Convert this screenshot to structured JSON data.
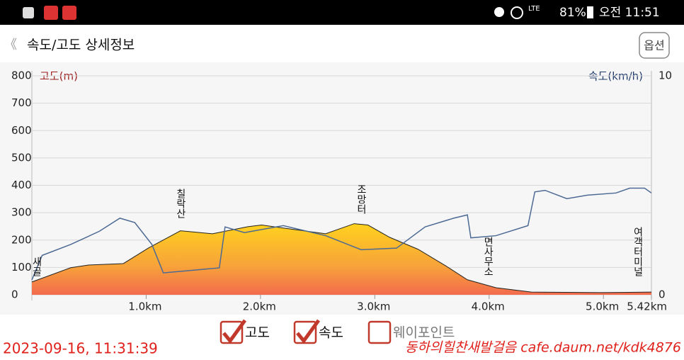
{
  "status_bar": {
    "network": "LTE",
    "battery": "81%",
    "time": "오전 11:51"
  },
  "header": {
    "back": "《",
    "title": "속도/고도 상세정보",
    "button": "옵션"
  },
  "chart_data": {
    "type": "area-line",
    "y_label": "고도(m)",
    "y2_label": "속도(km/h)",
    "xlim": [
      0,
      5.42
    ],
    "xticks": [
      {
        "value": 1,
        "label": "1.0km"
      },
      {
        "value": 2,
        "label": "2.0km"
      },
      {
        "value": 3,
        "label": "3.0km"
      },
      {
        "value": 4,
        "label": "4.0km"
      },
      {
        "value": 5,
        "label": "5.0km"
      },
      {
        "value": 5.42,
        "label": "5.42km"
      }
    ],
    "ylim": [
      0,
      800
    ],
    "yticks": [
      0,
      100,
      200,
      300,
      400,
      500,
      600,
      700,
      800
    ],
    "y2lim": [
      0,
      10
    ],
    "y2ticks": [
      0,
      10
    ],
    "grid": true,
    "series": [
      {
        "name": "고도",
        "type": "area",
        "color": "#f5a623",
        "x": [
          0,
          0.34,
          0.5,
          0.8,
          1.02,
          1.3,
          1.58,
          1.89,
          2.01,
          2.2,
          2.57,
          2.82,
          2.94,
          3.13,
          3.38,
          3.62,
          3.81,
          4.06,
          4.37,
          4.99,
          5.42
        ],
        "values": [
          47,
          99,
          109,
          114,
          171,
          234,
          223,
          249,
          255,
          244,
          223,
          260,
          255,
          210,
          166,
          106,
          55,
          26,
          10,
          8,
          10
        ]
      },
      {
        "name": "속도",
        "type": "line",
        "axis": "y2",
        "color": "#4d6a94",
        "x": [
          0,
          0.09,
          0.34,
          0.59,
          0.77,
          0.9,
          1.05,
          1.15,
          1.64,
          1.69,
          1.86,
          2.2,
          2.57,
          2.88,
          3.19,
          3.44,
          3.69,
          3.81,
          3.84,
          4.06,
          4.34,
          4.4,
          4.49,
          4.68,
          4.86,
          5.11,
          5.23,
          5.36,
          5.42
        ],
        "values": [
          0.68,
          1.8,
          2.3,
          2.9,
          3.5,
          3.3,
          2.3,
          1.0,
          1.23,
          3.1,
          2.84,
          3.16,
          2.7,
          2.06,
          2.13,
          3.1,
          3.5,
          3.65,
          2.6,
          2.7,
          3.16,
          4.7,
          4.77,
          4.39,
          4.55,
          4.65,
          4.87,
          4.87,
          4.65
        ]
      }
    ],
    "annotations": [
      {
        "text": "새골",
        "x": 0.04
      },
      {
        "text": "칠락산",
        "x": 1.3
      },
      {
        "text": "조망터",
        "x": 2.88
      },
      {
        "text": "면사무소",
        "x": 3.99
      },
      {
        "text": "여객터미널",
        "x": 5.3
      }
    ]
  },
  "checkboxes": [
    {
      "label": "고도",
      "checked": true
    },
    {
      "label": "속도",
      "checked": true
    },
    {
      "label": "웨이포인트",
      "checked": false
    }
  ],
  "overlay": {
    "timestamp": "2023-09-16, 11:31:39",
    "watermark": "동하의힐찬새발걸음 cafe.daum.net/kdk4876"
  }
}
